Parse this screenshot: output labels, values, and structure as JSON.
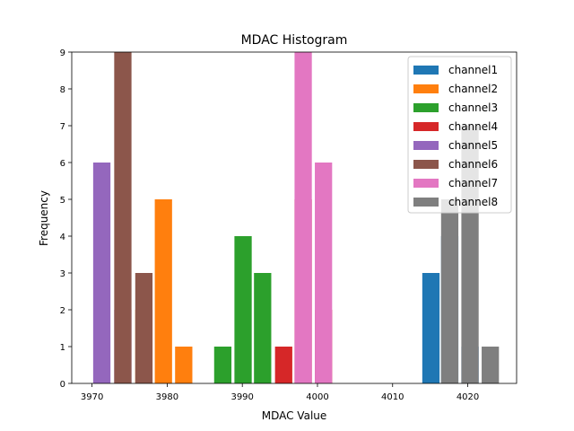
{
  "chart_data": {
    "type": "bar",
    "title": "MDAC Histogram",
    "xlabel": "MDAC Value",
    "ylabel": "Frequency",
    "xlim": [
      3967.3,
      4026.5
    ],
    "ylim": [
      0,
      9
    ],
    "xticks": [
      3970,
      3980,
      3990,
      4000,
      4010,
      4020
    ],
    "yticks": [
      0,
      1,
      2,
      3,
      4,
      5,
      6,
      7,
      8,
      9
    ],
    "bar_width": 2.3,
    "grid": false,
    "legend_position": "upper-right",
    "series": [
      {
        "name": "channel1",
        "color": "#1f77b4",
        "x": [
          4015.1,
          4017.6,
          4020.3
        ],
        "values": [
          3,
          4,
          1
        ]
      },
      {
        "name": "channel2",
        "color": "#ff7f0e",
        "x": [
          3976.9,
          3979.5,
          3982.2
        ],
        "values": [
          2,
          5,
          1
        ]
      },
      {
        "name": "channel3",
        "color": "#2ca02c",
        "x": [
          3987.4,
          3990.1,
          3992.7
        ],
        "values": [
          1,
          4,
          3
        ]
      },
      {
        "name": "channel4",
        "color": "#d62728",
        "x": [
          3995.5,
          3998.1,
          4000.8
        ],
        "values": [
          1,
          5,
          2
        ]
      },
      {
        "name": "channel5",
        "color": "#9467bd",
        "x": [
          3971.3,
          3974.1
        ],
        "values": [
          6,
          2
        ]
      },
      {
        "name": "channel6",
        "color": "#8c564b",
        "x": [
          3974.1,
          3976.9
        ],
        "values": [
          9,
          3
        ]
      },
      {
        "name": "channel7",
        "color": "#e377c2",
        "x": [
          3998.1,
          4000.8
        ],
        "values": [
          9,
          6
        ]
      },
      {
        "name": "channel8",
        "color": "#7f7f7f",
        "x": [
          4017.6,
          4020.3,
          4023.0
        ],
        "values": [
          5,
          7,
          1
        ]
      }
    ]
  }
}
